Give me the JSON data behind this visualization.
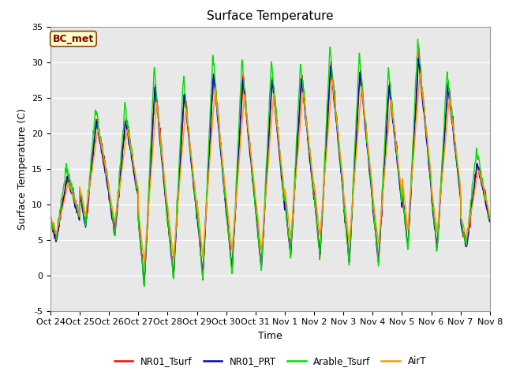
{
  "title": "Surface Temperature",
  "ylabel": "Surface Temperature (C)",
  "xlabel": "Time",
  "annotation": "BC_met",
  "ylim": [
    -5,
    35
  ],
  "yticks": [
    -5,
    0,
    5,
    10,
    15,
    20,
    25,
    30,
    35
  ],
  "xtick_labels": [
    "Oct 24",
    "Oct 25",
    "Oct 26",
    "Oct 27",
    "Oct 28",
    "Oct 29",
    "Oct 30",
    "Oct 31",
    "Nov 1",
    "Nov 2",
    "Nov 3",
    "Nov 4",
    "Nov 5",
    "Nov 6",
    "Nov 7",
    "Nov 8"
  ],
  "legend_labels": [
    "NR01_Tsurf",
    "NR01_PRT",
    "Arable_Tsurf",
    "AirT"
  ],
  "line_colors": [
    "#ff0000",
    "#0000cc",
    "#00dd00",
    "#ff9900"
  ],
  "background_color": "#e8e8e8",
  "title_fontsize": 11,
  "label_fontsize": 9,
  "tick_fontsize": 8,
  "annotation_bg": "#ffffcc",
  "annotation_border": "#8B4513",
  "annotation_color": "#8B0000",
  "lw": 1.0,
  "n_days": 15,
  "pts_per_day": 96,
  "peak_values": [
    14,
    22,
    22,
    27,
    26,
    29,
    28,
    28,
    28,
    30,
    29,
    27,
    31,
    27,
    16
  ],
  "min_values": [
    5,
    7,
    6,
    -1,
    0,
    0,
    1,
    1,
    3,
    3,
    2,
    2,
    4,
    4,
    4
  ]
}
